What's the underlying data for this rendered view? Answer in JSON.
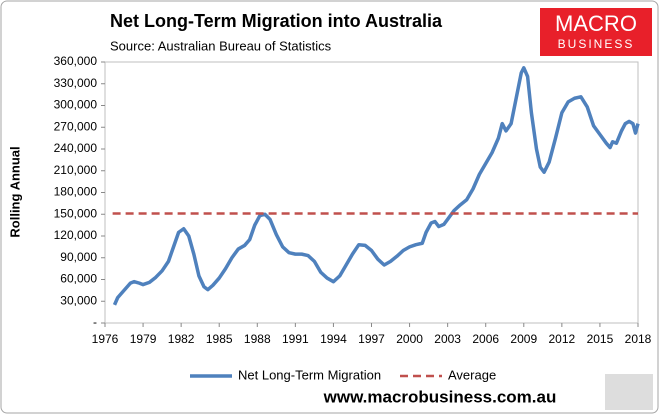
{
  "chart_data": {
    "type": "line",
    "title": "Net Long-Term Migration into Australia",
    "subtitle": "Source: Australian Bureau of Statistics",
    "y_label": "Rolling Annual",
    "logo": [
      "MACRO",
      "BUSINESS"
    ],
    "footer": "www.macrobusiness.com.au",
    "xlim": [
      1976,
      2018
    ],
    "xticks": [
      1976,
      1979,
      1982,
      1985,
      1988,
      1991,
      1994,
      1997,
      2000,
      2003,
      2006,
      2009,
      2012,
      2015,
      2018
    ],
    "ylim": [
      0,
      360000
    ],
    "yticks": [
      {
        "value": 0,
        "label": "-"
      },
      {
        "value": 30000,
        "label": "30,000"
      },
      {
        "value": 60000,
        "label": "60,000"
      },
      {
        "value": 90000,
        "label": "90,000"
      },
      {
        "value": 120000,
        "label": "120,000"
      },
      {
        "value": 150000,
        "label": "150,000"
      },
      {
        "value": 180000,
        "label": "180,000"
      },
      {
        "value": 210000,
        "label": "210,000"
      },
      {
        "value": 240000,
        "label": "240,000"
      },
      {
        "value": 270000,
        "label": "270,000"
      },
      {
        "value": 300000,
        "label": "300,000"
      },
      {
        "value": 330000,
        "label": "330,000"
      },
      {
        "value": 360000,
        "label": "360,000"
      }
    ],
    "legend": "bottom",
    "series": [
      {
        "name": "Net Long-Term Migration",
        "color": "#4f81bd",
        "x": [
          1976.75,
          1977.0,
          1977.5,
          1978.0,
          1978.3,
          1978.7,
          1979.0,
          1979.5,
          1980.0,
          1980.5,
          1981.0,
          1981.4,
          1981.8,
          1982.2,
          1982.6,
          1983.0,
          1983.4,
          1983.8,
          1984.1,
          1984.5,
          1985.0,
          1985.5,
          1986.0,
          1986.5,
          1987.0,
          1987.4,
          1987.8,
          1988.2,
          1988.6,
          1989.0,
          1989.5,
          1990.0,
          1990.5,
          1991.0,
          1991.5,
          1992.0,
          1992.5,
          1993.0,
          1993.5,
          1994.0,
          1994.5,
          1995.0,
          1995.5,
          1996.0,
          1996.5,
          1997.0,
          1997.5,
          1998.0,
          1998.5,
          1999.0,
          1999.5,
          2000.0,
          2000.5,
          2001.0,
          2001.3,
          2001.7,
          2002.0,
          2002.3,
          2002.7,
          2003.0,
          2003.5,
          2004.0,
          2004.5,
          2005.0,
          2005.5,
          2006.0,
          2006.5,
          2007.0,
          2007.3,
          2007.6,
          2008.0,
          2008.4,
          2008.8,
          2009.0,
          2009.3,
          2009.6,
          2010.0,
          2010.3,
          2010.6,
          2011.0,
          2011.5,
          2012.0,
          2012.5,
          2013.0,
          2013.5,
          2014.0,
          2014.5,
          2015.0,
          2015.5,
          2015.8,
          2016.0,
          2016.3,
          2016.7,
          2017.0,
          2017.3,
          2017.6,
          2017.8,
          2018.0
        ],
        "values": [
          25000,
          35000,
          45000,
          55000,
          57000,
          55000,
          53000,
          56000,
          63000,
          72000,
          85000,
          105000,
          125000,
          130000,
          120000,
          95000,
          65000,
          50000,
          46000,
          52000,
          62000,
          75000,
          90000,
          102000,
          107000,
          115000,
          135000,
          148000,
          150000,
          143000,
          122000,
          105000,
          97000,
          95000,
          95000,
          93000,
          85000,
          70000,
          62000,
          57000,
          65000,
          80000,
          95000,
          108000,
          107000,
          100000,
          88000,
          80000,
          85000,
          92000,
          100000,
          105000,
          108000,
          110000,
          125000,
          138000,
          140000,
          133000,
          136000,
          143000,
          155000,
          163000,
          170000,
          185000,
          205000,
          220000,
          235000,
          255000,
          275000,
          265000,
          275000,
          310000,
          345000,
          352000,
          340000,
          290000,
          240000,
          215000,
          208000,
          222000,
          255000,
          290000,
          305000,
          310000,
          312000,
          298000,
          272000,
          260000,
          248000,
          242000,
          250000,
          248000,
          265000,
          275000,
          278000,
          275000,
          262000,
          275000
        ]
      },
      {
        "name": "Average",
        "color": "#c0504d",
        "dashed": true,
        "x": [
          1976.6,
          2018
        ],
        "values": [
          151000,
          151000
        ]
      }
    ]
  }
}
